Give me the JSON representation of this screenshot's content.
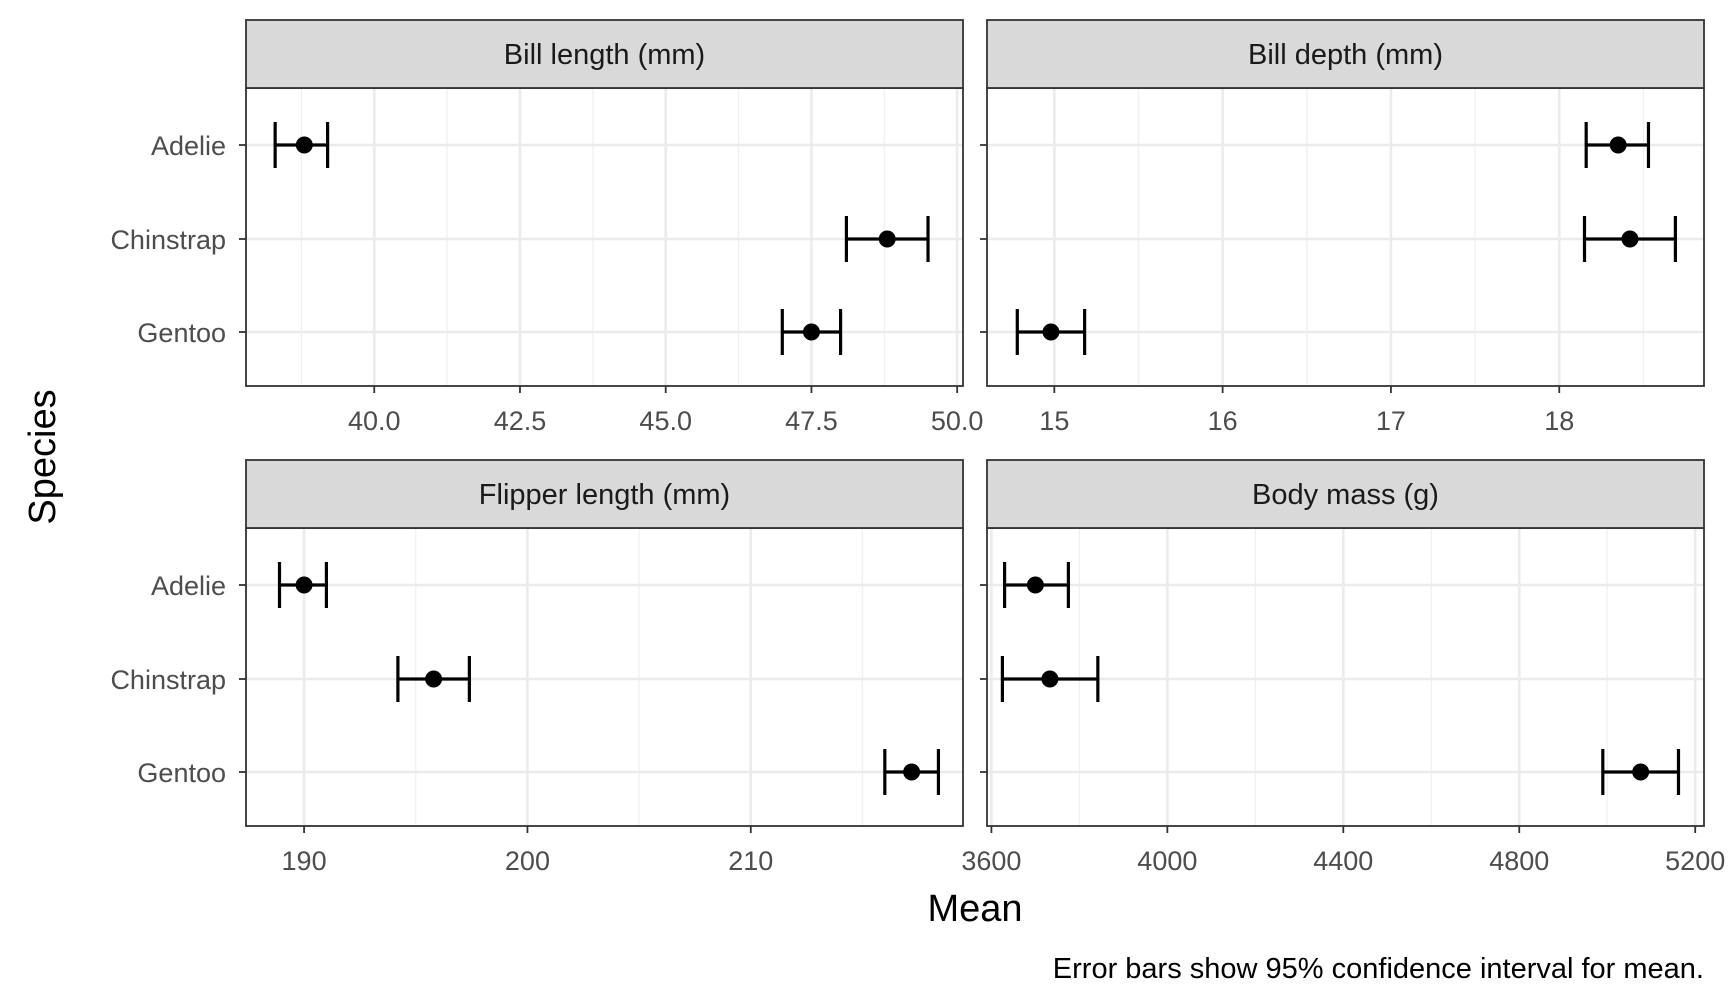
{
  "chart_data": {
    "type": "errorbar",
    "xlabel": "Mean",
    "ylabel": "Species",
    "caption": "Error bars show 95% confidence interval for mean.",
    "categories": [
      "Adelie",
      "Chinstrap",
      "Gentoo"
    ],
    "grid": true,
    "panels": [
      {
        "title": "Bill length (mm)",
        "xlim": [
          37.8,
          50.1
        ],
        "ticks": [
          40.0,
          42.5,
          45.0,
          47.5,
          50.0
        ],
        "tick_labels": [
          "40.0",
          "42.5",
          "45.0",
          "47.5",
          "50.0"
        ],
        "points": [
          {
            "species": "Adelie",
            "mean": 38.8,
            "lower": 38.3,
            "upper": 39.2
          },
          {
            "species": "Chinstrap",
            "mean": 48.8,
            "lower": 48.1,
            "upper": 49.5
          },
          {
            "species": "Gentoo",
            "mean": 47.5,
            "lower": 47.0,
            "upper": 48.0
          }
        ]
      },
      {
        "title": "Bill depth (mm)",
        "xlim": [
          14.6,
          18.86
        ],
        "ticks": [
          15,
          16,
          17,
          18
        ],
        "tick_labels": [
          "15",
          "16",
          "17",
          "18"
        ],
        "points": [
          {
            "species": "Adelie",
            "mean": 18.35,
            "lower": 18.16,
            "upper": 18.53
          },
          {
            "species": "Chinstrap",
            "mean": 18.42,
            "lower": 18.15,
            "upper": 18.69
          },
          {
            "species": "Gentoo",
            "mean": 14.98,
            "lower": 14.78,
            "upper": 15.18
          }
        ]
      },
      {
        "title": "Flipper length (mm)",
        "xlim": [
          187.4,
          219.5
        ],
        "ticks": [
          190,
          200,
          210
        ],
        "tick_labels": [
          "190",
          "200",
          "210"
        ],
        "points": [
          {
            "species": "Adelie",
            "mean": 190.0,
            "lower": 188.9,
            "upper": 191.0
          },
          {
            "species": "Chinstrap",
            "mean": 195.8,
            "lower": 194.2,
            "upper": 197.4
          },
          {
            "species": "Gentoo",
            "mean": 217.2,
            "lower": 216.0,
            "upper": 218.4
          }
        ]
      },
      {
        "title": "Body mass (g)",
        "xlim": [
          3590,
          5220
        ],
        "ticks": [
          3600,
          4000,
          4400,
          4800,
          5200
        ],
        "tick_labels": [
          "3600",
          "4000",
          "4400",
          "4800",
          "5200"
        ],
        "points": [
          {
            "species": "Adelie",
            "mean": 3700,
            "lower": 3630,
            "upper": 3775
          },
          {
            "species": "Chinstrap",
            "mean": 3733,
            "lower": 3625,
            "upper": 3842
          },
          {
            "species": "Gentoo",
            "mean": 5076,
            "lower": 4990,
            "upper": 5162
          }
        ]
      }
    ]
  }
}
